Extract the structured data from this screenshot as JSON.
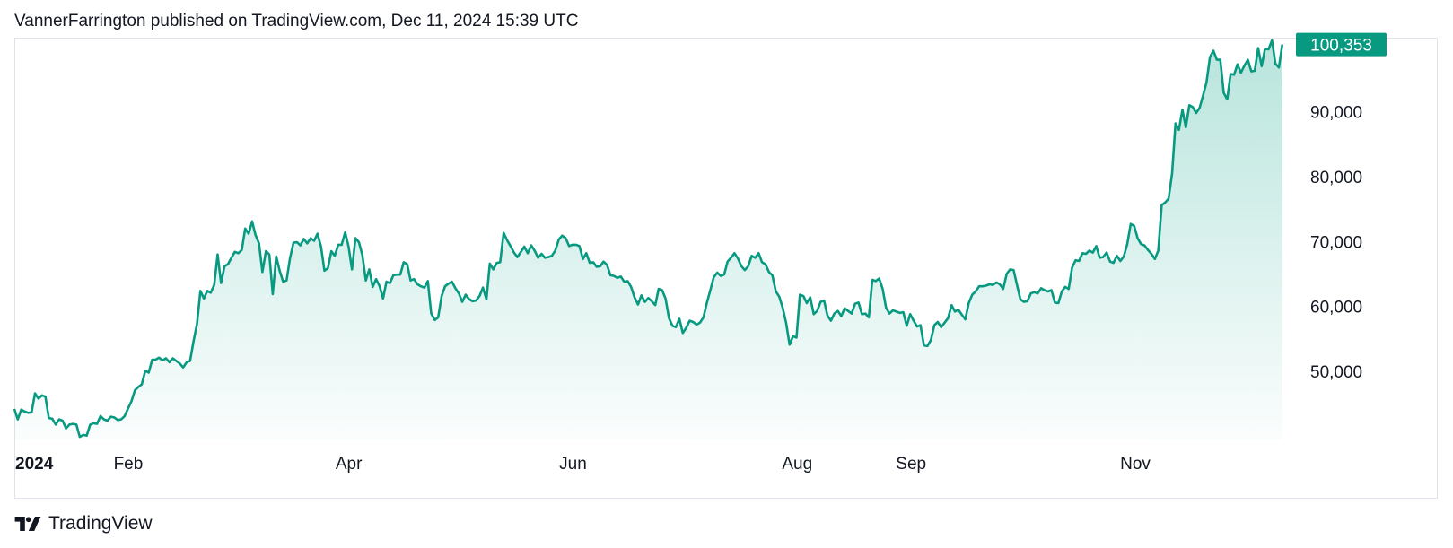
{
  "header": {
    "attribution": "VannerFarrington published on TradingView.com, Dec 11, 2024 15:39 UTC"
  },
  "footer": {
    "brand_text": "TradingView"
  },
  "colors": {
    "line": "#089981",
    "area_top": "#22ab94",
    "badge": "#089981",
    "text": "#131722",
    "frame": "#e0e3eb"
  },
  "icons": {
    "logo": "tradingview-logo-icon"
  },
  "chart_data": {
    "type": "area",
    "title": "",
    "xlabel": "",
    "ylabel": "",
    "grid": false,
    "x_start": "2024-01-01",
    "x_end": "2024-12-11",
    "xlim": [
      "2024-01-01",
      "2024-12-13"
    ],
    "ylim": [
      39500,
      101400
    ],
    "x_ticks": [
      {
        "label": "2024",
        "date": "2024-01-01",
        "bold": true
      },
      {
        "label": "Feb",
        "date": "2024-02-01"
      },
      {
        "label": "Apr",
        "date": "2024-04-01"
      },
      {
        "label": "Jun",
        "date": "2024-06-01"
      },
      {
        "label": "Aug",
        "date": "2024-08-01"
      },
      {
        "label": "Sep",
        "date": "2024-09-01"
      },
      {
        "label": "Nov",
        "date": "2024-11-01"
      }
    ],
    "y_ticks": [
      {
        "label": "50,000",
        "value": 50000
      },
      {
        "label": "60,000",
        "value": 60000
      },
      {
        "label": "70,000",
        "value": 70000
      },
      {
        "label": "80,000",
        "value": 80000
      },
      {
        "label": "90,000",
        "value": 90000
      }
    ],
    "last_value": 100353,
    "last_value_label": "100,353",
    "series": [
      {
        "values": [
          44200,
          42600,
          44100,
          43800,
          43600,
          43700,
          46600,
          45800,
          46300,
          46100,
          42800,
          42700,
          41800,
          42600,
          42400,
          41200,
          41800,
          41900,
          41800,
          39900,
          40200,
          40100,
          41800,
          42000,
          41900,
          43100,
          42600,
          42400,
          43000,
          42900,
          42500,
          42600,
          43100,
          44300,
          45400,
          47100,
          47600,
          48000,
          50100,
          49800,
          51800,
          51800,
          52100,
          51700,
          52000,
          51400,
          52000,
          51600,
          51200,
          50600,
          51400,
          51600,
          54600,
          57300,
          62400,
          61200,
          62400,
          62100,
          63300,
          68000,
          63600,
          66200,
          66500,
          67500,
          68400,
          68200,
          68700,
          72000,
          71200,
          73100,
          71000,
          69700,
          65300,
          68500,
          68000,
          61900,
          67700,
          65500,
          63800,
          64000,
          67400,
          69800,
          69900,
          69400,
          70400,
          69700,
          70500,
          70100,
          71200,
          69200,
          65500,
          65900,
          68500,
          67800,
          69500,
          69500,
          71400,
          69200,
          65700,
          70500,
          69900,
          67900,
          64000,
          65700,
          63000,
          64200,
          63100,
          61200,
          63800,
          63600,
          64800,
          64900,
          64900,
          66800,
          66500,
          64000,
          64200,
          63400,
          63100,
          62900,
          63900,
          58900,
          57900,
          58300,
          61600,
          63100,
          63500,
          63800,
          62800,
          62000,
          60700,
          61800,
          61100,
          60800,
          60900,
          61600,
          62900,
          61100,
          66600,
          65700,
          66700,
          66800,
          71300,
          70200,
          69300,
          68300,
          67600,
          68400,
          69200,
          68200,
          69400,
          68600,
          67500,
          68100,
          67500,
          67600,
          67800,
          68600,
          70300,
          70900,
          70500,
          69300,
          69500,
          69500,
          69300,
          67300,
          68200,
          66700,
          66800,
          66100,
          66200,
          66900,
          66400,
          64800,
          64700,
          64400,
          64600,
          63800,
          63900,
          63000,
          61400,
          60300,
          61700,
          60700,
          61300,
          60800,
          60200,
          62700,
          62500,
          61200,
          58200,
          57000,
          56800,
          58100,
          55900,
          56700,
          57800,
          57600,
          57200,
          57500,
          58300,
          60600,
          62500,
          64500,
          65200,
          64700,
          64900,
          66900,
          67500,
          68200,
          67400,
          66200,
          65600,
          66200,
          67800,
          67500,
          68200,
          66800,
          66500,
          65300,
          64800,
          62300,
          61500,
          59800,
          57400,
          54100,
          55400,
          55200,
          61800,
          61600,
          60500,
          61400,
          58800,
          59300,
          60700,
          60900,
          58600,
          57800,
          58900,
          59300,
          58500,
          59700,
          59300,
          58900,
          60400,
          60600,
          58800,
          58900,
          58300,
          64100,
          63900,
          64300,
          62700,
          59800,
          58900,
          59400,
          59200,
          59000,
          59100,
          57000,
          58800,
          57800,
          56900,
          57100,
          54000,
          53900,
          54800,
          57100,
          57600,
          56800,
          57500,
          58200,
          60200,
          59200,
          59500,
          58700,
          58000,
          60500,
          61800,
          62300,
          63100,
          63100,
          63200,
          63400,
          63300,
          63700,
          63400,
          62700,
          65000,
          65700,
          65600,
          63300,
          61100,
          60700,
          60800,
          62000,
          62200,
          62000,
          62800,
          62500,
          62300,
          62500,
          60600,
          60500,
          62300,
          63000,
          62700,
          66000,
          67100,
          67000,
          68200,
          68100,
          68600,
          68300,
          69300,
          67500,
          67600,
          68300,
          66900,
          66700,
          67800,
          67000,
          67700,
          69600,
          72700,
          72400,
          70500,
          69600,
          69400,
          68700,
          68100,
          67300,
          68600,
          75600,
          76000,
          76600,
          80500,
          88200,
          87200,
          90300,
          87600,
          91000,
          90700,
          89800,
          90600,
          92500,
          94500,
          98400,
          99400,
          98000,
          98000,
          92900,
          91900,
          95800,
          95700,
          97300,
          96000,
          97100,
          98000,
          96200,
          96300,
          99800,
          97000,
          99700,
          99600,
          101000,
          97400,
          96800,
          100353
        ]
      }
    ]
  }
}
